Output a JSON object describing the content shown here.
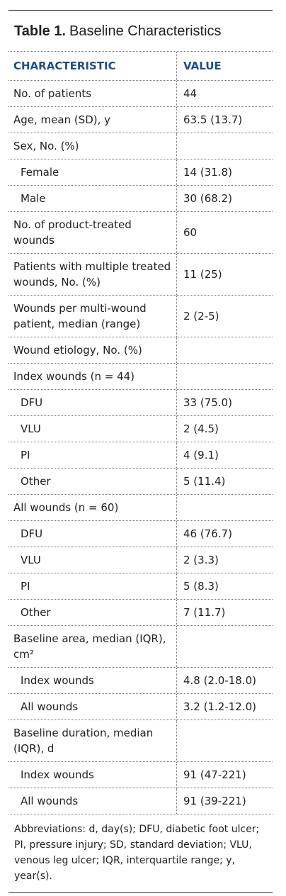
{
  "title": {
    "label": "Table 1.",
    "text": "Baseline Characteristics"
  },
  "table": {
    "header": [
      "CHARACTERISTIC",
      "VALUE"
    ],
    "rows": [
      {
        "label": "No. of patients",
        "value": "44"
      },
      {
        "label": "Age, mean (SD), y",
        "value": "63.5 (13.7)"
      },
      {
        "label": "Sex, No. (%)",
        "sub": [
          {
            "label": "Female",
            "value": "14 (31.8)"
          },
          {
            "label": "Male",
            "value": "30 (68.2)"
          }
        ]
      },
      {
        "label": "No. of product-treated wounds",
        "value": "60"
      },
      {
        "label": "Patients with multiple treated wounds, No. (%)",
        "value": "11 (25)"
      },
      {
        "label": "Wounds per multi-wound patient, median (range)",
        "value": "2 (2-5)"
      },
      {
        "label": "Wound etiology, No. (%)"
      },
      {
        "label": "Index wounds (n = 44)",
        "sub": [
          {
            "label": "DFU",
            "value": "33 (75.0)"
          },
          {
            "label": "VLU",
            "value": "2 (4.5)"
          },
          {
            "label": "PI",
            "value": "4 (9.1)"
          },
          {
            "label": "Other",
            "value": "5 (11.4)"
          }
        ]
      },
      {
        "label": "All wounds (n = 60)",
        "sub": [
          {
            "label": "DFU",
            "value": "46 (76.7)"
          },
          {
            "label": "VLU",
            "value": "2 (3.3)"
          },
          {
            "label": "PI",
            "value": "5 (8.3)"
          },
          {
            "label": "Other",
            "value": "7 (11.7)"
          }
        ]
      },
      {
        "label": "Baseline area, median (IQR), cm²",
        "sub": [
          {
            "label": "Index wounds",
            "value": "4.8 (2.0-18.0)"
          },
          {
            "label": "All wounds",
            "value": "3.2 (1.2-12.0)"
          }
        ]
      },
      {
        "label": "Baseline duration, median (IQR), d",
        "sub": [
          {
            "label": "Index wounds",
            "value": "91 (47-221)"
          },
          {
            "label": "All wounds",
            "value": "91 (39-221)"
          }
        ]
      }
    ]
  },
  "footnote": "Abbreviations: d, day(s); DFU, diabetic foot ulcer; PI, pressure injury; SD, standard deviation; VLU, venous leg ulcer; IQR, interquartile range; y, year(s)."
}
